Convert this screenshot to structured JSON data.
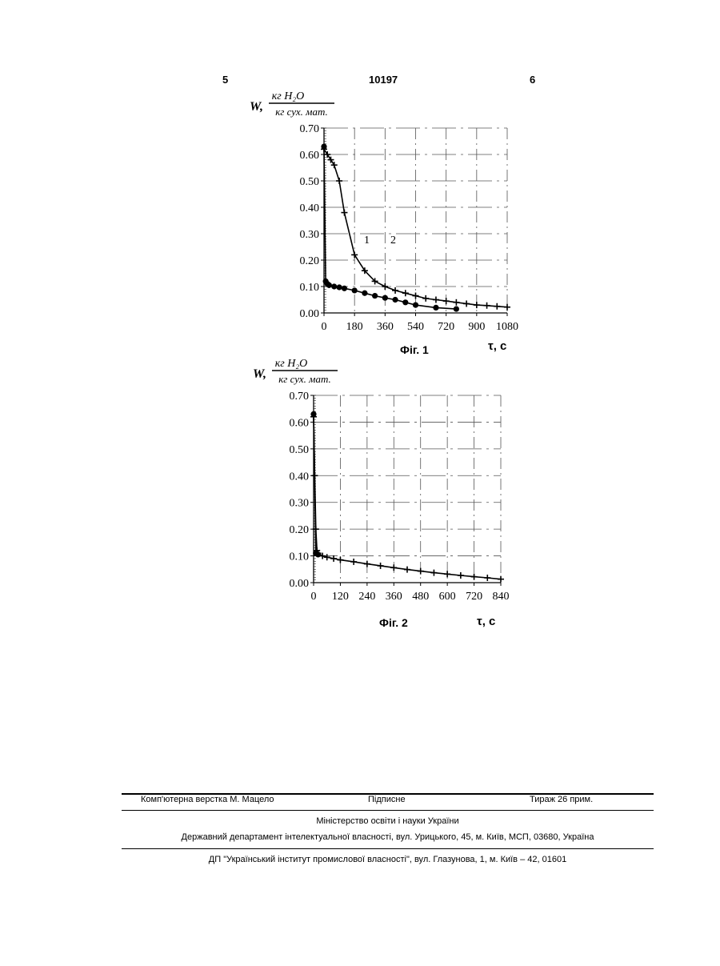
{
  "header": {
    "page_left": "5",
    "patent_number": "10197",
    "page_right": "6"
  },
  "figures": [
    {
      "caption": "Фіг. 1",
      "y_symbol": "W,",
      "y_unit_num": "кг H₂O",
      "y_unit_den": "кг сух. мат.",
      "x_symbol": "τ, с",
      "curve_labels": [
        "1",
        "2"
      ]
    },
    {
      "caption": "Фіг. 2",
      "y_symbol": "W,",
      "y_unit_num": "кг H₂O",
      "y_unit_den": "кг сух. мат.",
      "x_symbol": "τ,  с"
    }
  ],
  "chart_data": [
    {
      "type": "line",
      "xlim": [
        0,
        1080
      ],
      "ylim": [
        0,
        0.7
      ],
      "xticks": [
        "0",
        "180",
        "360",
        "540",
        "720",
        "900",
        "1080"
      ],
      "yticks": [
        "0.00",
        "0.10",
        "0.20",
        "0.30",
        "0.40",
        "0.50",
        "0.60",
        "0.70"
      ],
      "grid": true,
      "series": [
        {
          "name": "1",
          "marker": "circle",
          "x": [
            0,
            10,
            20,
            30,
            60,
            90,
            120,
            180,
            240,
            300,
            360,
            420,
            480,
            540,
            660,
            780
          ],
          "y": [
            0.63,
            0.12,
            0.11,
            0.105,
            0.1,
            0.097,
            0.093,
            0.085,
            0.075,
            0.065,
            0.057,
            0.05,
            0.04,
            0.03,
            0.02,
            0.015
          ]
        },
        {
          "name": "2",
          "marker": "plus",
          "x": [
            0,
            20,
            40,
            60,
            90,
            120,
            180,
            240,
            300,
            360,
            420,
            480,
            540,
            600,
            660,
            720,
            780,
            840,
            900,
            960,
            1020,
            1080
          ],
          "y": [
            0.62,
            0.6,
            0.58,
            0.56,
            0.5,
            0.38,
            0.22,
            0.16,
            0.12,
            0.1,
            0.085,
            0.075,
            0.065,
            0.055,
            0.05,
            0.045,
            0.04,
            0.035,
            0.03,
            0.028,
            0.025,
            0.022
          ]
        }
      ]
    },
    {
      "type": "line",
      "xlim": [
        0,
        840
      ],
      "ylim": [
        0,
        0.7
      ],
      "xticks": [
        "0",
        "120",
        "240",
        "360",
        "480",
        "600",
        "720",
        "840"
      ],
      "yticks": [
        "0.00",
        "0.10",
        "0.20",
        "0.30",
        "0.40",
        "0.50",
        "0.60",
        "0.70"
      ],
      "grid": true,
      "series": [
        {
          "name": "",
          "marker": "circle",
          "x": [
            0,
            10,
            20
          ],
          "y": [
            0.63,
            0.11,
            0.105
          ]
        },
        {
          "name": "",
          "marker": "plus",
          "x": [
            0,
            5,
            10,
            15,
            20,
            40,
            60,
            90,
            120,
            180,
            240,
            300,
            360,
            420,
            480,
            540,
            600,
            660,
            720,
            780,
            840
          ],
          "y": [
            0.62,
            0.4,
            0.2,
            0.12,
            0.11,
            0.1,
            0.095,
            0.09,
            0.085,
            0.078,
            0.07,
            0.063,
            0.056,
            0.049,
            0.043,
            0.037,
            0.032,
            0.027,
            0.022,
            0.018,
            0.013
          ]
        }
      ]
    }
  ],
  "footer": {
    "typesetting": "Комп'ютерна верстка М. Мацело",
    "signed": "Підписне",
    "circulation": "Тираж 26 прим.",
    "ministry": "Міністерство освіти і науки України",
    "department": "Державний департамент інтелектуальної власності, вул. Урицького, 45, м. Київ, МСП, 03680, Україна",
    "institute": "ДП \"Український інститут промислової власності\", вул. Глазунова, 1, м. Київ – 42, 01601"
  }
}
